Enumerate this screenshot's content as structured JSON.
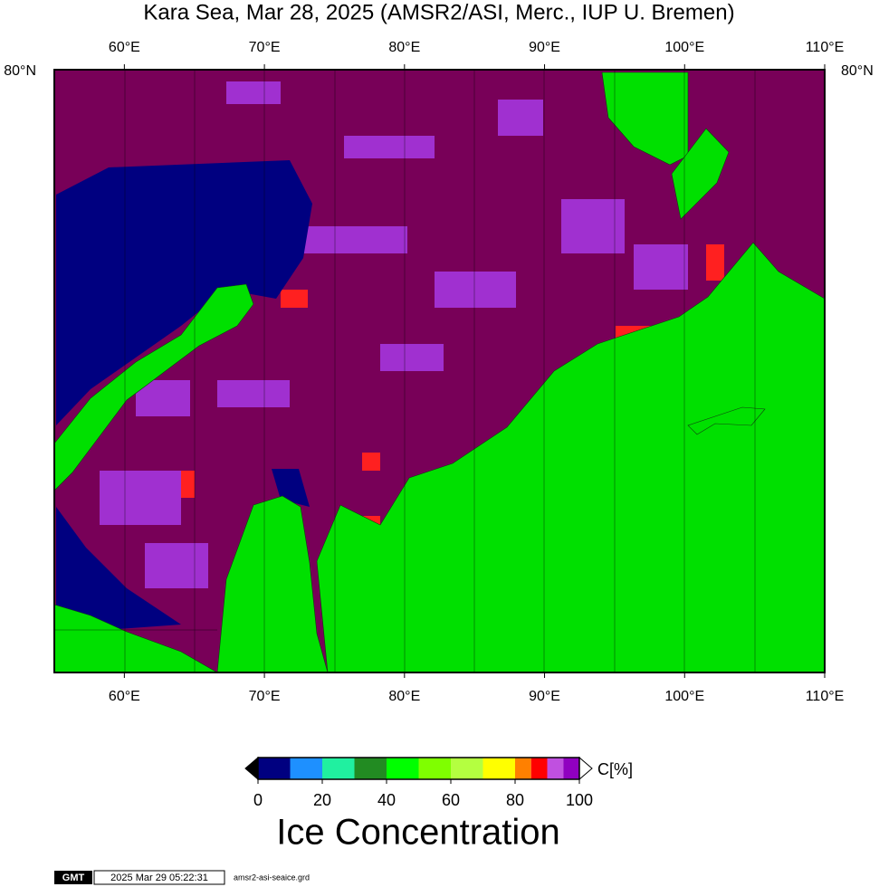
{
  "title": "Kara Sea, Mar 28, 2025 (AMSR2/ASI, Merc., IUP U. Bremen)",
  "map": {
    "lonlim": [
      55,
      110
    ],
    "lon_ticks": [
      {
        "value": 60,
        "label": "60°E"
      },
      {
        "value": 70,
        "label": "70°E"
      },
      {
        "value": 80,
        "label": "80°E"
      },
      {
        "value": 90,
        "label": "90°E"
      },
      {
        "value": 100,
        "label": "100°E"
      },
      {
        "value": 110,
        "label": "110°E"
      }
    ],
    "lat_label": "80°N"
  },
  "colorbar": {
    "bounds": [
      0,
      10,
      20,
      30,
      40,
      50,
      60,
      70,
      80,
      85,
      90,
      95,
      100
    ],
    "colors": [
      "#000080",
      "#1e90ff",
      "#20f0a0",
      "#228b22",
      "#00ff00",
      "#7fff00",
      "#b4ff40",
      "#ffff00",
      "#ff8000",
      "#ff0000",
      "#c050e0",
      "#9000c0"
    ],
    "ticks": [
      0,
      20,
      40,
      60,
      80,
      100
    ],
    "unit_label": "C[%]",
    "title": "Ice Concentration"
  },
  "footer": {
    "logo": "GMT",
    "timestamp": "2025 Mar 29 05:22:31",
    "file": "amsr2-asi-seaice.grd"
  }
}
